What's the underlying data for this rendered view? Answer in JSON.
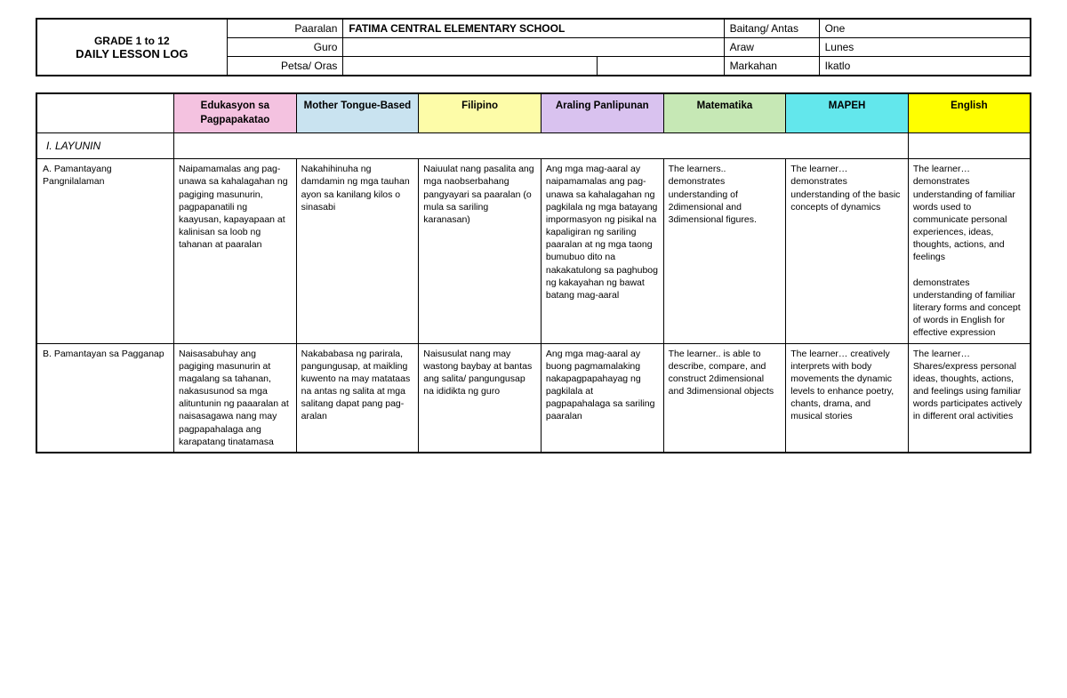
{
  "header": {
    "title_line1": "GRADE 1 to 12",
    "title_line2": "DAILY LESSON LOG",
    "labels": {
      "paaralan": "Paaralan",
      "guro": "Guro",
      "petsa": "Petsa/ Oras",
      "baitang": "Baitang/ Antas",
      "araw": "Araw",
      "markahan": "Markahan"
    },
    "values": {
      "paaralan": "FATIMA CENTRAL ELEMENTARY SCHOOL",
      "guro": "",
      "petsa": "",
      "baitang": "One",
      "araw": "Lunes",
      "markahan": "Ikatlo"
    }
  },
  "subjects": [
    {
      "name": "Edukasyon sa Pagpapakatao",
      "bg": "#f4c2e0"
    },
    {
      "name": "Mother Tongue-Based",
      "bg": "#c9e3f0"
    },
    {
      "name": "Filipino",
      "bg": "#fdfca8"
    },
    {
      "name": "Araling Panlipunan",
      "bg": "#d9c2ef"
    },
    {
      "name": "Matematika",
      "bg": "#c6e8b5"
    },
    {
      "name": "MAPEH",
      "bg": "#63e7ec"
    },
    {
      "name": "English",
      "bg": "#ffff00"
    }
  ],
  "sections": {
    "layunin": "I. LAYUNIN"
  },
  "rows": {
    "A": {
      "label": "A. Pamantayang Pangnilalaman",
      "cells": [
        "Naipamamalas ang pag-unawa sa kahalagahan ng pagiging masunurin, pagpapanatili ng kaayusan, kapayapaan at kalinisan sa loob ng tahanan at paaralan",
        "Nakahihinuha ng damdamin ng mga tauhan ayon sa kanilang kilos o sinasabi",
        "Naiuulat nang pasalita ang mga naobserbahang pangyayari sa paaralan (o mula sa sariling karanasan)",
        "Ang mga  mag-aaral ay naipamamalas ang pag-unawa sa kahalagahan ng pagkilala ng mga batayang impormasyon ng pisikal na kapaligiran ng sariling paaralan at ng mga taong bumubuo dito na nakakatulong sa paghubog ng kakayahan ng bawat batang mag-aaral",
        "The learners.. demonstrates understanding of 2dimensional and 3dimensional figures.",
        "The learner… demonstrates understanding of the basic concepts of dynamics",
        "The learner… demonstrates understanding of familiar words used to communicate personal experiences, ideas, thoughts, actions, and feelings\n\ndemonstrates understanding of familiar literary forms and concept of words in English for effective expression"
      ]
    },
    "B": {
      "label": "B. Pamantayan sa Pagganap",
      "cells": [
        "Naisasabuhay ang pagiging masunurin at magalang sa tahanan, nakasusunod sa mga alituntunin ng paaaralan at naisasagawa nang may pagpapahalaga ang karapatang tinatamasa",
        "Nakababasa ng parirala, pangungusap, at maikling kuwento na may matataas na antas ng salita at mga salitang dapat pang pag-aralan",
        "Naisusulat nang may wastong baybay at bantas ang salita/ pangungusap na ididikta ng guro",
        "Ang mga mag-aaral ay buong pagmamalaking nakapagpapahayag ng pagkilala at pagpapahalaga sa sariling paaralan",
        "The learner.. is able to describe, compare, and construct 2dimensional and 3dimensional objects",
        "The learner… creatively interprets with body movements the dynamic levels to enhance poetry, chants, drama, and musical stories",
        "The learner… Shares/express personal ideas, thoughts, actions, and feelings using familiar words participates actively in different oral activities"
      ]
    }
  }
}
